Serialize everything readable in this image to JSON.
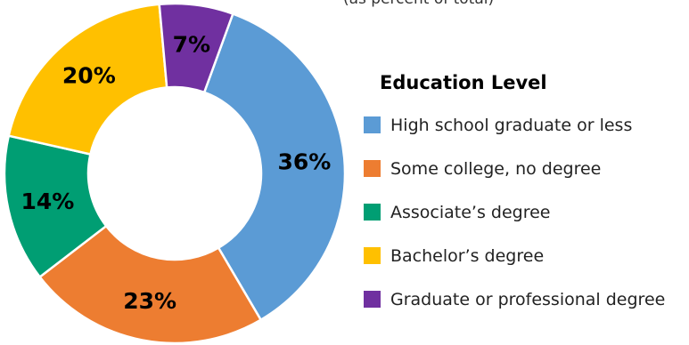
{
  "chart_data": {
    "type": "pie",
    "donut": true,
    "legend_title": "Education Level",
    "legend_position": "right",
    "categories": [
      "High school graduate or less",
      "Some college, no degree",
      "Associate’s degree",
      "Bachelor’s degree",
      "Graduate or professional degree"
    ],
    "values": [
      36,
      23,
      14,
      20,
      7
    ],
    "labels": [
      "36%",
      "23%",
      "14%",
      "20%",
      "7%"
    ],
    "colors": [
      "#5B9BD5",
      "#ED7D31",
      "#009E73",
      "#FFC000",
      "#7030A0"
    ],
    "start_angle_deg": 20
  },
  "top_text": "(as percent of total)"
}
